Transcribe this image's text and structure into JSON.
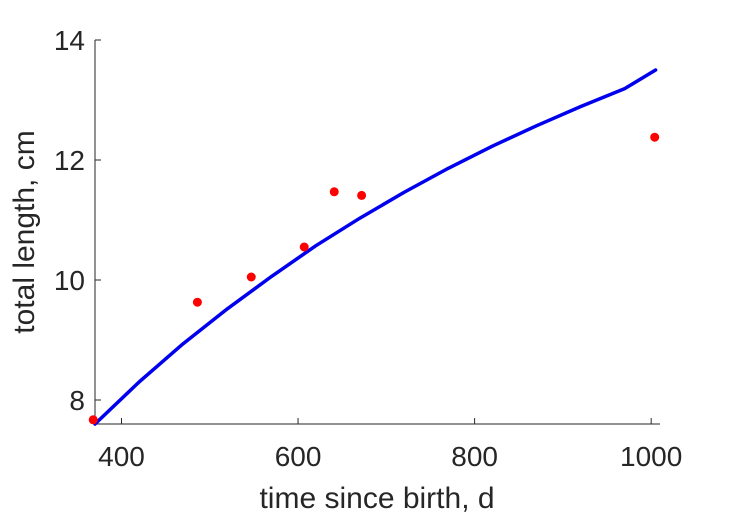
{
  "chart_data": {
    "type": "scatter",
    "xlabel": "time since birth, d",
    "ylabel": "total length, cm",
    "xlim": [
      370,
      1010
    ],
    "ylim": [
      7.6,
      14
    ],
    "xticks": [
      400,
      600,
      800,
      1000
    ],
    "yticks": [
      8,
      10,
      12,
      14
    ],
    "grid": false,
    "series": [
      {
        "kind": "points",
        "color": "#ff0000",
        "x": [
          368,
          486,
          547,
          607,
          641,
          672,
          1004
        ],
        "y": [
          7.67,
          9.63,
          10.05,
          10.55,
          11.47,
          11.41,
          12.38
        ]
      },
      {
        "kind": "line",
        "color": "#0000ee",
        "x": [
          370,
          420,
          470,
          520,
          570,
          620,
          670,
          720,
          770,
          820,
          870,
          920,
          970,
          1005
        ],
        "y": [
          7.6,
          8.3,
          8.94,
          9.52,
          10.06,
          10.57,
          11.03,
          11.46,
          11.86,
          12.23,
          12.57,
          12.89,
          13.19,
          13.5
        ]
      }
    ]
  }
}
